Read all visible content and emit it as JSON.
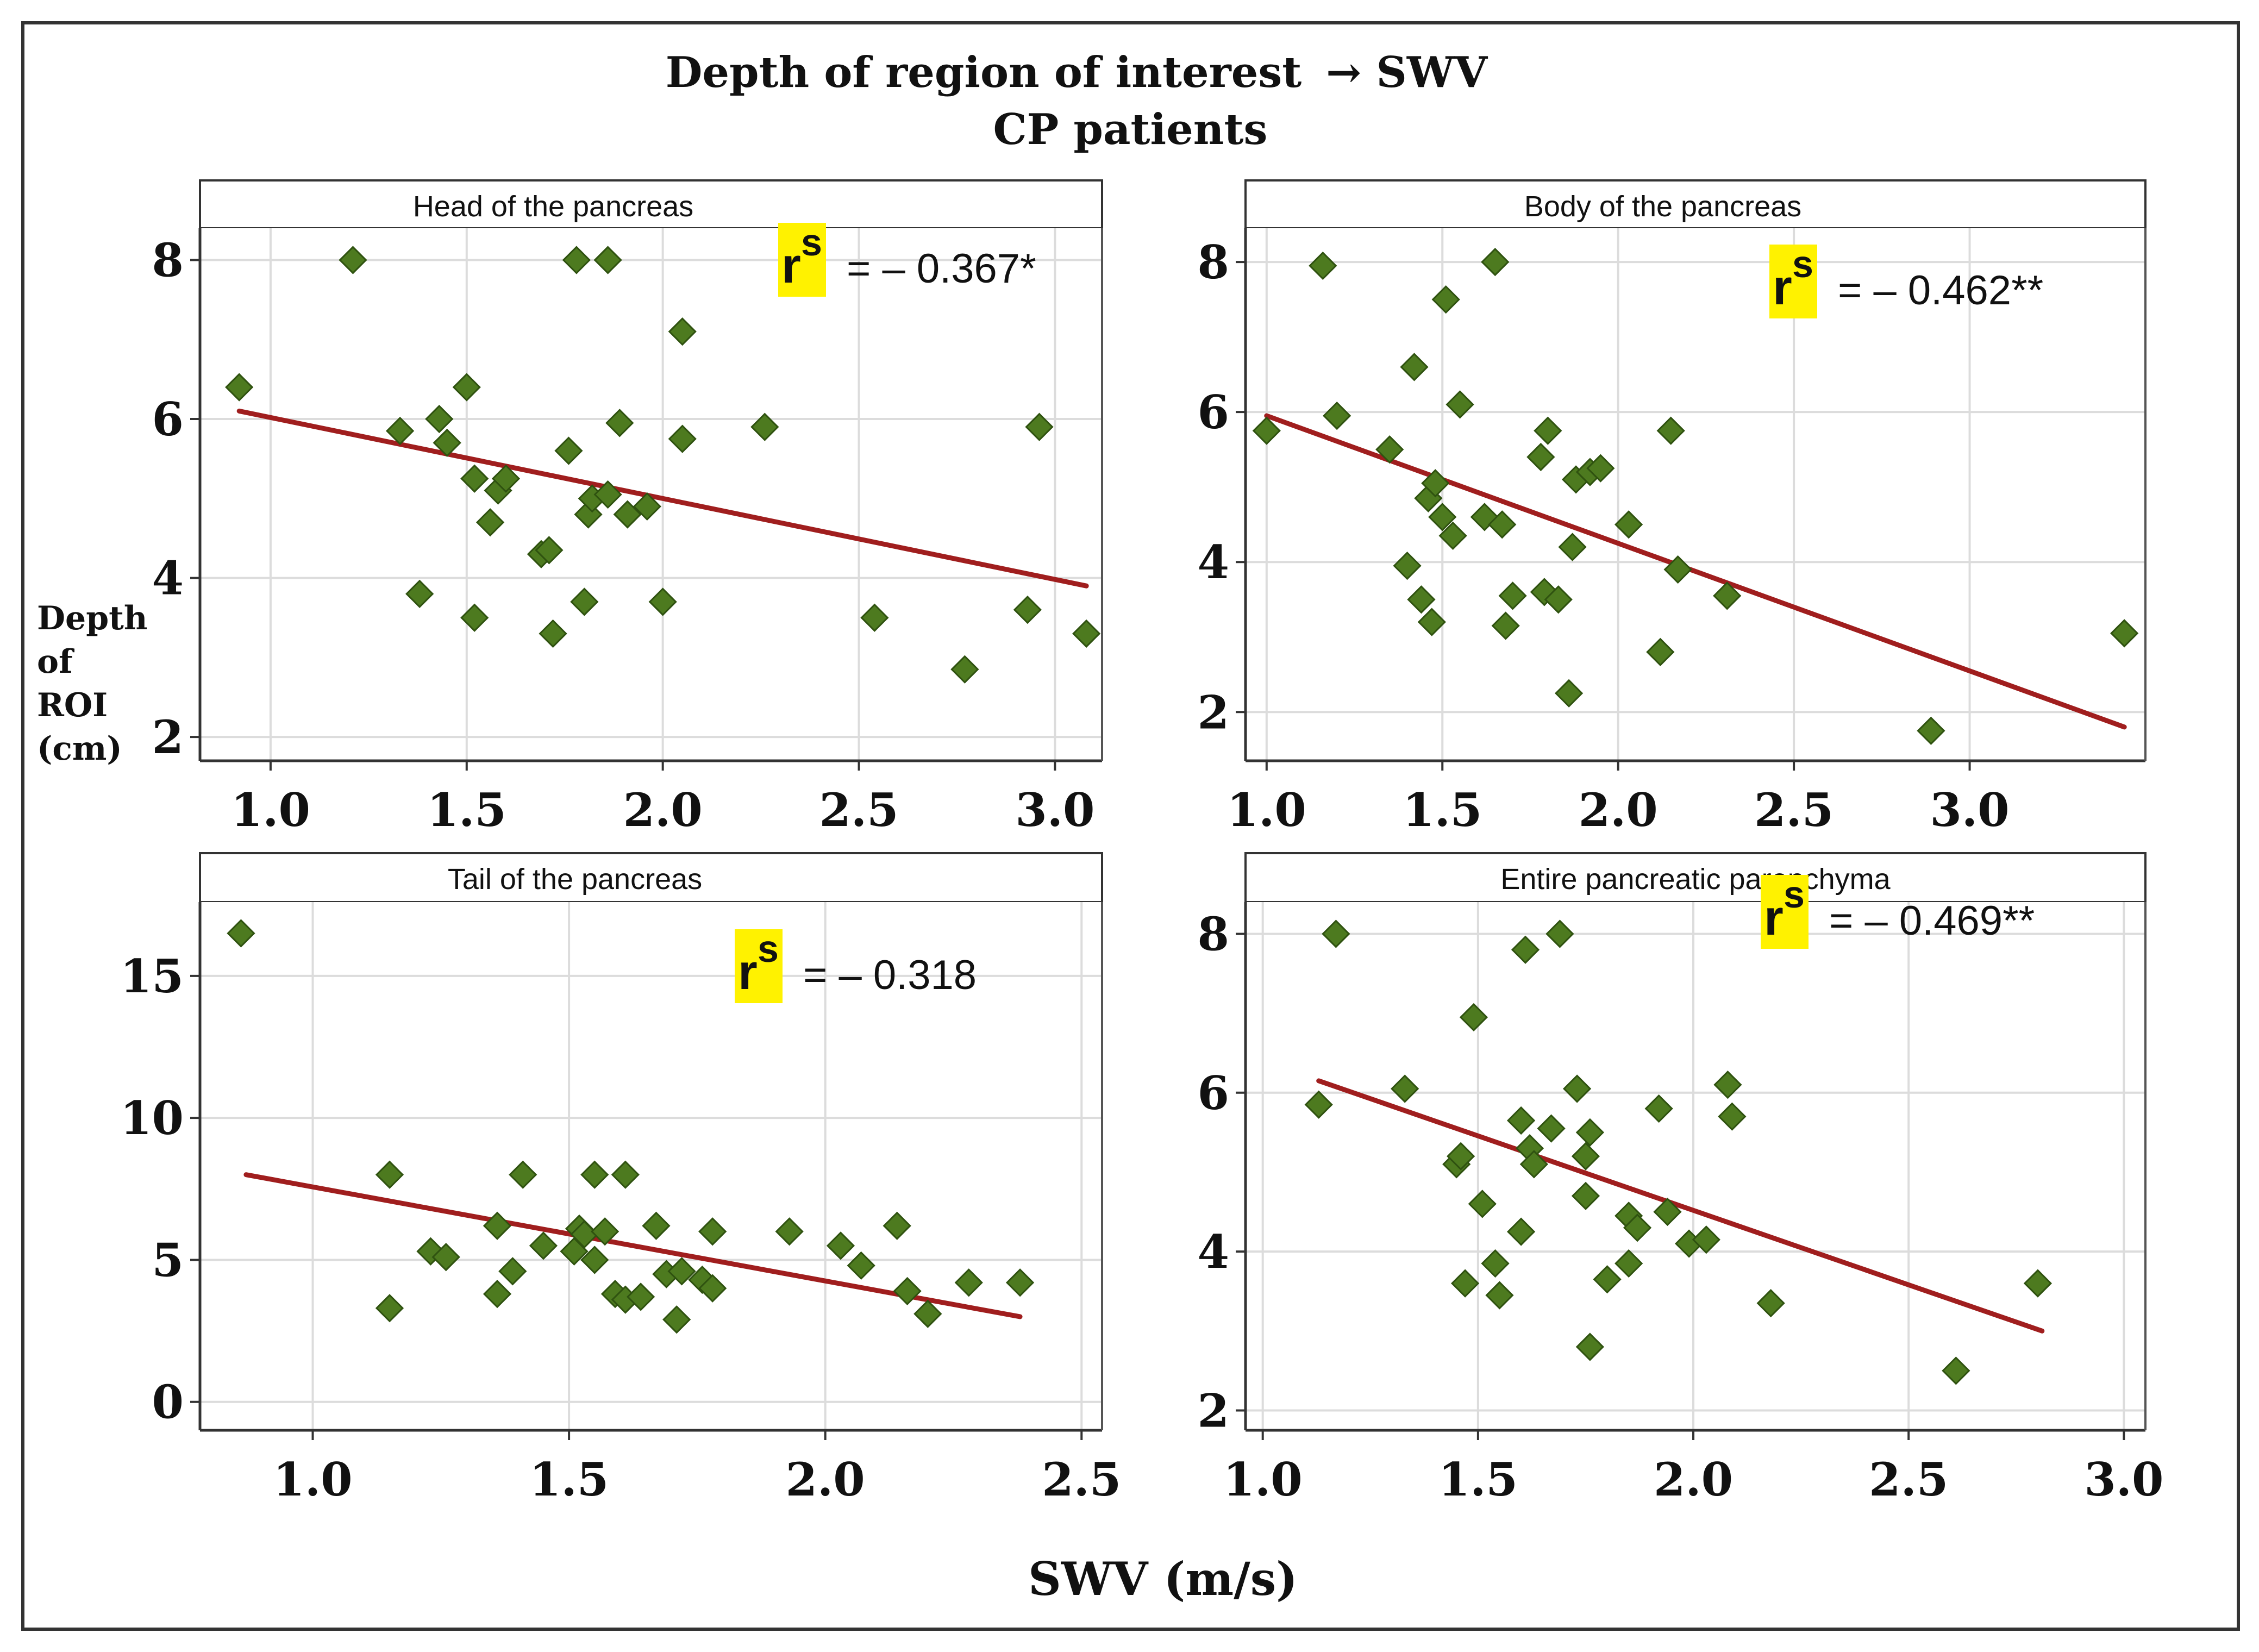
{
  "figure": {
    "title_line1": "Depth of region of interest",
    "title_arrow": "→ SWV",
    "title_line2": "CP patients",
    "y_axis_label": [
      "Depth",
      "of",
      "ROI",
      "(cm)"
    ],
    "x_axis_label": "SWV (m/s)"
  },
  "colors": {
    "point": "#4d7a1f",
    "point_edge": "#2f5210",
    "trend": "#a01e1e",
    "grid": "#dcdcdc",
    "highlight": "#fff200",
    "frame": "#333333"
  },
  "chart_data": [
    {
      "type": "scatter",
      "title": "Head of the pancreas",
      "xlabel": "SWV (m/s)",
      "ylabel": "Depth of ROI (cm)",
      "xlim": [
        0.82,
        3.12
      ],
      "ylim": [
        1.7,
        8.4
      ],
      "xticks": [
        1.0,
        1.5,
        2.0,
        2.5,
        3.0
      ],
      "xtick_labels": [
        "1.0",
        "1.5",
        "2.0",
        "2.5",
        "3.0"
      ],
      "yticks": [
        2,
        4,
        6,
        8
      ],
      "ytick_labels": [
        "2",
        "4",
        "6",
        "8"
      ],
      "grid": true,
      "corr_symbol": "r",
      "corr_sup": "s",
      "corr_value": "=  – 0.367*",
      "trend": {
        "x": [
          0.92,
          3.08
        ],
        "y": [
          6.1,
          3.9
        ]
      },
      "points": [
        {
          "x": 0.92,
          "y": 6.4
        },
        {
          "x": 1.21,
          "y": 8.0
        },
        {
          "x": 1.33,
          "y": 5.85
        },
        {
          "x": 1.38,
          "y": 3.8
        },
        {
          "x": 1.43,
          "y": 6.0
        },
        {
          "x": 1.45,
          "y": 5.7
        },
        {
          "x": 1.5,
          "y": 6.4
        },
        {
          "x": 1.52,
          "y": 5.25
        },
        {
          "x": 1.52,
          "y": 3.5
        },
        {
          "x": 1.56,
          "y": 4.7
        },
        {
          "x": 1.58,
          "y": 5.1
        },
        {
          "x": 1.6,
          "y": 5.25
        },
        {
          "x": 1.69,
          "y": 4.3
        },
        {
          "x": 1.71,
          "y": 4.35
        },
        {
          "x": 1.72,
          "y": 3.3
        },
        {
          "x": 1.76,
          "y": 5.6
        },
        {
          "x": 1.78,
          "y": 8.0
        },
        {
          "x": 1.8,
          "y": 3.7
        },
        {
          "x": 1.81,
          "y": 4.8
        },
        {
          "x": 1.82,
          "y": 5.0
        },
        {
          "x": 1.86,
          "y": 8.0
        },
        {
          "x": 1.86,
          "y": 5.05
        },
        {
          "x": 1.89,
          "y": 5.95
        },
        {
          "x": 1.91,
          "y": 4.8
        },
        {
          "x": 1.96,
          "y": 4.9
        },
        {
          "x": 2.0,
          "y": 3.7
        },
        {
          "x": 2.05,
          "y": 7.1
        },
        {
          "x": 2.05,
          "y": 5.75
        },
        {
          "x": 2.26,
          "y": 5.9
        },
        {
          "x": 2.54,
          "y": 3.5
        },
        {
          "x": 2.77,
          "y": 2.85
        },
        {
          "x": 2.93,
          "y": 3.6
        },
        {
          "x": 2.96,
          "y": 5.9
        },
        {
          "x": 3.08,
          "y": 3.3
        }
      ]
    },
    {
      "type": "scatter",
      "title": "Body of the pancreas",
      "xlabel": "SWV (m/s)",
      "ylabel": "Depth of ROI (cm)",
      "xlim": [
        0.94,
        3.5
      ],
      "ylim": [
        1.35,
        8.45
      ],
      "xticks": [
        1.0,
        1.5,
        2.0,
        2.5,
        3.0
      ],
      "xtick_labels": [
        "1.0",
        "1.5",
        "2.0",
        "2.5",
        "3.0"
      ],
      "yticks": [
        2,
        4,
        6,
        8
      ],
      "ytick_labels": [
        "2",
        "4",
        "6",
        "8"
      ],
      "grid": true,
      "corr_symbol": "r",
      "corr_sup": "s",
      "corr_value": "=  – 0.462**",
      "trend": {
        "x": [
          1.0,
          3.44
        ],
        "y": [
          5.95,
          1.8
        ]
      },
      "points": [
        {
          "x": 1.0,
          "y": 5.75
        },
        {
          "x": 1.16,
          "y": 7.95
        },
        {
          "x": 1.2,
          "y": 5.95
        },
        {
          "x": 1.35,
          "y": 5.5
        },
        {
          "x": 1.4,
          "y": 3.95
        },
        {
          "x": 1.42,
          "y": 6.6
        },
        {
          "x": 1.44,
          "y": 3.5
        },
        {
          "x": 1.46,
          "y": 4.85
        },
        {
          "x": 1.47,
          "y": 3.2
        },
        {
          "x": 1.48,
          "y": 5.05
        },
        {
          "x": 1.5,
          "y": 4.6
        },
        {
          "x": 1.51,
          "y": 7.5
        },
        {
          "x": 1.53,
          "y": 4.35
        },
        {
          "x": 1.55,
          "y": 6.1
        },
        {
          "x": 1.62,
          "y": 4.6
        },
        {
          "x": 1.65,
          "y": 8.0
        },
        {
          "x": 1.67,
          "y": 4.5
        },
        {
          "x": 1.68,
          "y": 3.15
        },
        {
          "x": 1.7,
          "y": 3.55
        },
        {
          "x": 1.78,
          "y": 5.4
        },
        {
          "x": 1.79,
          "y": 3.6
        },
        {
          "x": 1.8,
          "y": 5.75
        },
        {
          "x": 1.83,
          "y": 3.5
        },
        {
          "x": 1.86,
          "y": 2.25
        },
        {
          "x": 1.87,
          "y": 4.2
        },
        {
          "x": 1.88,
          "y": 5.1
        },
        {
          "x": 1.92,
          "y": 5.2
        },
        {
          "x": 1.95,
          "y": 5.25
        },
        {
          "x": 2.03,
          "y": 4.5
        },
        {
          "x": 2.12,
          "y": 2.8
        },
        {
          "x": 2.15,
          "y": 5.75
        },
        {
          "x": 2.17,
          "y": 3.9
        },
        {
          "x": 2.31,
          "y": 3.55
        },
        {
          "x": 2.89,
          "y": 1.75
        },
        {
          "x": 3.44,
          "y": 3.05
        }
      ]
    },
    {
      "type": "scatter",
      "title": "Tail of the pancreas",
      "xlabel": "SWV (m/s)",
      "ylabel": "Depth of ROI (cm)",
      "xlim": [
        0.78,
        2.54
      ],
      "ylim": [
        -1.0,
        17.6
      ],
      "xticks": [
        1.0,
        1.5,
        2.0,
        2.5
      ],
      "xtick_labels": [
        "1.0",
        "1.5",
        "2.0",
        "2.5"
      ],
      "yticks": [
        0,
        5,
        10,
        15
      ],
      "ytick_labels": [
        "0",
        "5",
        "10",
        "15"
      ],
      "grid": true,
      "corr_symbol": "r",
      "corr_sup": "s",
      "corr_value": "=  – 0.318",
      "trend": {
        "x": [
          0.87,
          2.38
        ],
        "y": [
          8.0,
          3.0
        ]
      },
      "points": [
        {
          "x": 0.86,
          "y": 16.5
        },
        {
          "x": 1.15,
          "y": 3.3
        },
        {
          "x": 1.15,
          "y": 8.0
        },
        {
          "x": 1.23,
          "y": 5.3
        },
        {
          "x": 1.26,
          "y": 5.1
        },
        {
          "x": 1.36,
          "y": 3.8
        },
        {
          "x": 1.36,
          "y": 6.2
        },
        {
          "x": 1.39,
          "y": 4.6
        },
        {
          "x": 1.41,
          "y": 8.0
        },
        {
          "x": 1.45,
          "y": 5.5
        },
        {
          "x": 1.51,
          "y": 5.3
        },
        {
          "x": 1.52,
          "y": 6.1
        },
        {
          "x": 1.53,
          "y": 5.9
        },
        {
          "x": 1.55,
          "y": 8.0
        },
        {
          "x": 1.55,
          "y": 5.0
        },
        {
          "x": 1.57,
          "y": 6.0
        },
        {
          "x": 1.59,
          "y": 3.8
        },
        {
          "x": 1.61,
          "y": 8.0
        },
        {
          "x": 1.61,
          "y": 3.6
        },
        {
          "x": 1.64,
          "y": 3.7
        },
        {
          "x": 1.67,
          "y": 6.2
        },
        {
          "x": 1.69,
          "y": 4.5
        },
        {
          "x": 1.71,
          "y": 2.9
        },
        {
          "x": 1.72,
          "y": 4.6
        },
        {
          "x": 1.76,
          "y": 4.3
        },
        {
          "x": 1.78,
          "y": 6.0
        },
        {
          "x": 1.78,
          "y": 4.0
        },
        {
          "x": 1.93,
          "y": 6.0
        },
        {
          "x": 2.03,
          "y": 5.5
        },
        {
          "x": 2.07,
          "y": 4.8
        },
        {
          "x": 2.14,
          "y": 6.2
        },
        {
          "x": 2.16,
          "y": 3.9
        },
        {
          "x": 2.2,
          "y": 3.1
        },
        {
          "x": 2.28,
          "y": 4.2
        },
        {
          "x": 2.38,
          "y": 4.2
        }
      ]
    },
    {
      "type": "scatter",
      "title": "Entire pancreatic parenchyma",
      "xlabel": "SWV (m/s)",
      "ylabel": "Depth of ROI (cm)",
      "xlim": [
        0.96,
        3.05
      ],
      "ylim": [
        1.75,
        8.4
      ],
      "xticks": [
        1.0,
        1.5,
        2.0,
        2.5,
        3.0
      ],
      "xtick_labels": [
        "1.0",
        "1.5",
        "2.0",
        "2.5",
        "3.0"
      ],
      "yticks": [
        2,
        4,
        6,
        8
      ],
      "ytick_labels": [
        "2",
        "4",
        "6",
        "8"
      ],
      "grid": true,
      "corr_symbol": "r",
      "corr_sup": "s",
      "corr_value": "=  – 0.469**",
      "trend": {
        "x": [
          1.13,
          2.81
        ],
        "y": [
          6.15,
          3.0
        ]
      },
      "points": [
        {
          "x": 1.13,
          "y": 5.85
        },
        {
          "x": 1.17,
          "y": 8.0
        },
        {
          "x": 1.33,
          "y": 6.05
        },
        {
          "x": 1.45,
          "y": 5.1
        },
        {
          "x": 1.46,
          "y": 5.2
        },
        {
          "x": 1.47,
          "y": 3.6
        },
        {
          "x": 1.49,
          "y": 6.95
        },
        {
          "x": 1.51,
          "y": 4.6
        },
        {
          "x": 1.54,
          "y": 3.85
        },
        {
          "x": 1.55,
          "y": 3.45
        },
        {
          "x": 1.6,
          "y": 4.25
        },
        {
          "x": 1.6,
          "y": 5.65
        },
        {
          "x": 1.61,
          "y": 7.8
        },
        {
          "x": 1.62,
          "y": 5.3
        },
        {
          "x": 1.63,
          "y": 5.1
        },
        {
          "x": 1.67,
          "y": 5.55
        },
        {
          "x": 1.69,
          "y": 8.0
        },
        {
          "x": 1.73,
          "y": 6.05
        },
        {
          "x": 1.75,
          "y": 5.2
        },
        {
          "x": 1.75,
          "y": 4.7
        },
        {
          "x": 1.76,
          "y": 5.5
        },
        {
          "x": 1.76,
          "y": 2.8
        },
        {
          "x": 1.8,
          "y": 3.65
        },
        {
          "x": 1.85,
          "y": 4.45
        },
        {
          "x": 1.85,
          "y": 3.85
        },
        {
          "x": 1.87,
          "y": 4.3
        },
        {
          "x": 1.92,
          "y": 5.8
        },
        {
          "x": 1.94,
          "y": 4.5
        },
        {
          "x": 1.99,
          "y": 4.1
        },
        {
          "x": 2.03,
          "y": 4.15
        },
        {
          "x": 2.08,
          "y": 6.1
        },
        {
          "x": 2.09,
          "y": 5.7
        },
        {
          "x": 2.18,
          "y": 3.35
        },
        {
          "x": 2.61,
          "y": 2.5
        },
        {
          "x": 2.8,
          "y": 3.6
        }
      ]
    }
  ]
}
